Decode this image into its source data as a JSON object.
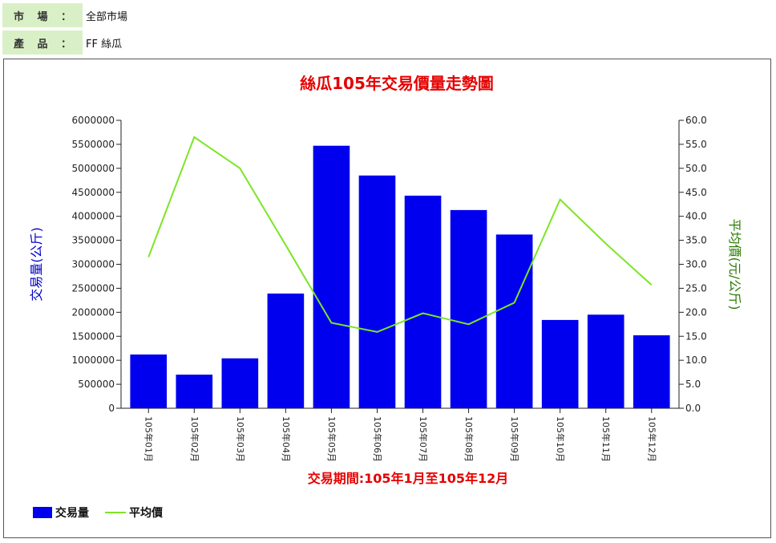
{
  "filters": {
    "market": {
      "label_chars": [
        "市",
        "場",
        "："
      ],
      "value": "全部市場"
    },
    "product": {
      "label_chars": [
        "產",
        "品",
        "："
      ],
      "value": "FF 絲瓜"
    }
  },
  "colors": {
    "bar": "#0000ee",
    "line": "#7ce526",
    "title": "#e60000",
    "y1_label": "#0000cc",
    "y2_label": "#2a7a00",
    "filter_bg": "#d9f0c7"
  },
  "chart_data": {
    "type": "bar",
    "title": "絲瓜105年交易價量走勢圖",
    "xlabel": "交易期間:105年1月至105年12月",
    "ylabel": "交易量(公斤)",
    "y2label": "平均價(元/公斤)",
    "categories": [
      "105年01月",
      "105年02月",
      "105年03月",
      "105年04月",
      "105年05月",
      "105年06月",
      "105年07月",
      "105年08月",
      "105年09月",
      "105年10月",
      "105年11月",
      "105年12月"
    ],
    "series": [
      {
        "name": "交易量",
        "type": "bar",
        "axis": "left",
        "values": [
          1120000,
          700000,
          1040000,
          2390000,
          5470000,
          4850000,
          4430000,
          4130000,
          3620000,
          1840000,
          1950000,
          1520000
        ]
      },
      {
        "name": "平均價",
        "type": "line",
        "axis": "right",
        "values": [
          31.5,
          56.5,
          50.0,
          34.0,
          17.8,
          15.9,
          19.8,
          17.5,
          22.0,
          43.5,
          34.3,
          25.7
        ]
      }
    ],
    "ylim": [
      0,
      6000000
    ],
    "yticks": [
      "0",
      "500000",
      "1000000",
      "1500000",
      "2000000",
      "2500000",
      "3000000",
      "3500000",
      "4000000",
      "4500000",
      "5000000",
      "5500000",
      "6000000"
    ],
    "y2lim": [
      0,
      60
    ],
    "y2ticks": [
      "0.0",
      "5.0",
      "10.0",
      "15.0",
      "20.0",
      "25.0",
      "30.0",
      "35.0",
      "40.0",
      "45.0",
      "50.0",
      "55.0",
      "60.0"
    ],
    "grid": false,
    "legend": "bottom-left"
  }
}
